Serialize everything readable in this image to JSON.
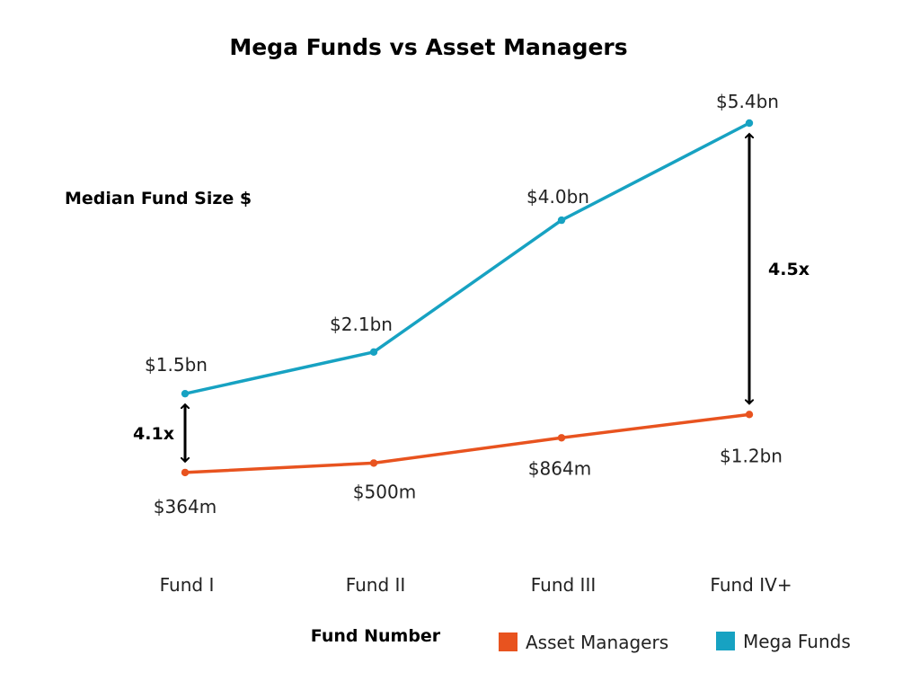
{
  "chart_data": {
    "type": "line",
    "title": "Mega Funds vs Asset Managers",
    "ylabel": "Median Fund Size $",
    "xlabel": "Fund Number",
    "categories": [
      "Fund I",
      "Fund II",
      "Fund III",
      "Fund IV+"
    ],
    "ylim": [
      0,
      5.4
    ],
    "grid": false,
    "legend_position": "bottom-right",
    "series": [
      {
        "name": "Asset Managers",
        "color": "#E8531F",
        "values": [
          0.364,
          0.5,
          0.864,
          1.2
        ],
        "labels": [
          "$364m",
          "$500m",
          "$864m",
          "$1.2bn"
        ]
      },
      {
        "name": "Mega Funds",
        "color": "#17A2C2",
        "values": [
          1.5,
          2.1,
          4.0,
          5.4
        ],
        "labels": [
          "$1.5bn",
          "$2.1bn",
          "$4.0bn",
          "$5.4bn"
        ]
      }
    ],
    "annotations": [
      {
        "category_index": 0,
        "text": "4.1x",
        "side": "left"
      },
      {
        "category_index": 3,
        "text": "4.5x",
        "side": "right"
      }
    ]
  }
}
